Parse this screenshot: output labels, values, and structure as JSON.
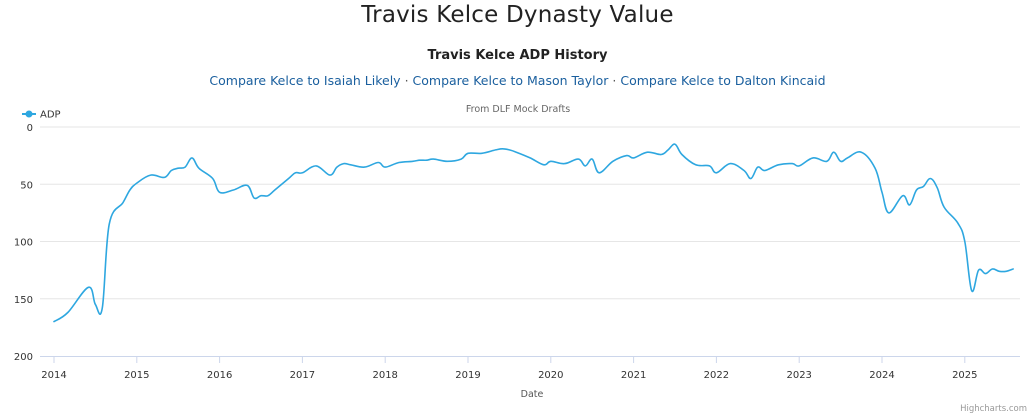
{
  "page": {
    "title": "Travis Kelce Dynasty Value"
  },
  "links": [
    {
      "label": "Compare Kelce to Isaiah Likely"
    },
    {
      "label": "Compare Kelce to Mason Taylor"
    },
    {
      "label": "Compare Kelce to Dalton Kincaid"
    }
  ],
  "link_separator": "·",
  "credits": "Highcharts.com",
  "colors": {
    "series": "#2ea7e0",
    "grid": "#e6e6e6",
    "link": "#1a5f9e"
  },
  "chart_data": {
    "type": "line",
    "title": "Travis Kelce ADP History",
    "subtitle": "From DLF Mock Drafts",
    "xlabel": "Date",
    "ylabel": "",
    "ylim": [
      0,
      200
    ],
    "y_reversed": true,
    "y_ticks": [
      0,
      50,
      100,
      150,
      200
    ],
    "x_ticks": [
      "2014",
      "2015",
      "2016",
      "2017",
      "2018",
      "2019",
      "2020",
      "2021",
      "2022",
      "2023",
      "2024",
      "2025"
    ],
    "xlim": [
      "2014-01",
      "2025-08"
    ],
    "grid": true,
    "legend": "top-left",
    "series": [
      {
        "name": "ADP",
        "x": [
          "2014-01",
          "2014-03",
          "2014-06",
          "2014-07",
          "2014-08",
          "2014-09",
          "2014-11",
          "2014-12",
          "2015-01",
          "2015-03",
          "2015-05",
          "2015-06",
          "2015-07",
          "2015-08",
          "2015-09",
          "2015-10",
          "2015-12",
          "2016-01",
          "2016-03",
          "2016-05",
          "2016-06",
          "2016-07",
          "2016-08",
          "2016-09",
          "2016-11",
          "2016-12",
          "2017-01",
          "2017-03",
          "2017-05",
          "2017-06",
          "2017-07",
          "2017-08",
          "2017-10",
          "2017-12",
          "2018-01",
          "2018-03",
          "2018-05",
          "2018-06",
          "2018-07",
          "2018-08",
          "2018-10",
          "2018-12",
          "2019-01",
          "2019-03",
          "2019-05",
          "2019-06",
          "2019-07",
          "2019-08",
          "2019-10",
          "2019-12",
          "2020-01",
          "2020-03",
          "2020-05",
          "2020-06",
          "2020-07",
          "2020-08",
          "2020-10",
          "2020-12",
          "2021-01",
          "2021-03",
          "2021-05",
          "2021-06",
          "2021-07",
          "2021-08",
          "2021-10",
          "2021-12",
          "2022-01",
          "2022-03",
          "2022-05",
          "2022-06",
          "2022-07",
          "2022-08",
          "2022-10",
          "2022-12",
          "2023-01",
          "2023-03",
          "2023-05",
          "2023-06",
          "2023-07",
          "2023-08",
          "2023-10",
          "2023-12",
          "2024-01",
          "2024-02",
          "2024-04",
          "2024-05",
          "2024-06",
          "2024-07",
          "2024-08",
          "2024-09",
          "2024-10",
          "2024-12",
          "2025-01",
          "2025-02",
          "2025-03",
          "2025-04",
          "2025-05",
          "2025-06",
          "2025-07",
          "2025-08"
        ],
        "values": [
          170,
          162,
          140,
          155,
          158,
          85,
          66,
          55,
          49,
          42,
          44,
          38,
          36,
          35,
          27,
          36,
          45,
          57,
          55,
          51,
          62,
          60,
          60,
          55,
          45,
          40,
          40,
          34,
          42,
          35,
          32,
          33,
          35,
          31,
          35,
          31,
          30,
          29,
          29,
          28,
          30,
          28,
          23,
          23,
          20,
          19,
          20,
          22,
          27,
          33,
          30,
          32,
          28,
          34,
          28,
          40,
          30,
          25,
          27,
          22,
          24,
          20,
          15,
          24,
          33,
          34,
          40,
          32,
          38,
          45,
          35,
          38,
          33,
          32,
          34,
          27,
          30,
          22,
          30,
          27,
          22,
          36,
          57,
          75,
          60,
          68,
          55,
          52,
          45,
          53,
          70,
          84,
          100,
          143,
          125,
          128,
          124,
          126,
          126,
          124
        ]
      }
    ]
  }
}
